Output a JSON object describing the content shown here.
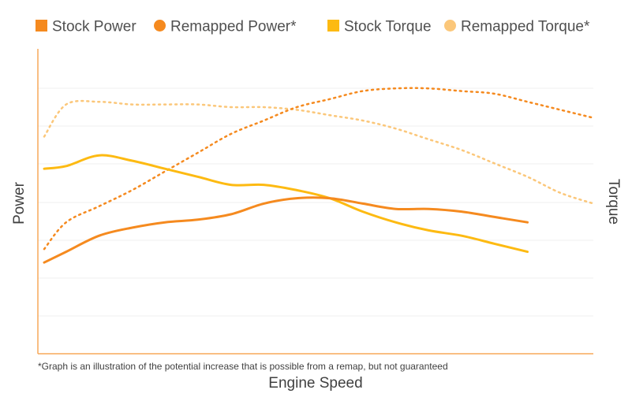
{
  "chart_data": {
    "type": "line",
    "title": "",
    "xlabel": "Engine Speed",
    "ylabel": "Power",
    "y2label": "Torque",
    "footnote": "*Graph is an illustration of the potential increase that is possible from a remap, but not guaranteed",
    "grid": true,
    "legend_position": "top",
    "x": [
      0.0,
      0.04,
      0.1,
      0.16,
      0.22,
      0.28,
      0.34,
      0.4,
      0.46,
      0.52,
      0.58,
      0.64,
      0.7,
      0.76,
      0.82,
      0.88,
      0.94,
      1.0
    ],
    "xlim": [
      0,
      1
    ],
    "ylim": [
      0,
      1
    ],
    "series": [
      {
        "name": "Stock Power",
        "legend_marker": "square",
        "style": "solid",
        "color": "#F58A1F",
        "values": [
          0.27,
          0.31,
          0.37,
          0.4,
          0.42,
          0.43,
          0.45,
          0.49,
          0.51,
          0.51,
          0.49,
          0.47,
          0.47,
          0.46,
          0.44,
          0.42,
          null,
          null
        ]
      },
      {
        "name": "Remapped Power*",
        "legend_marker": "circle",
        "style": "dotted",
        "color": "#F58A1F",
        "values": [
          0.32,
          0.42,
          0.48,
          0.54,
          0.61,
          0.68,
          0.75,
          0.8,
          0.85,
          0.88,
          0.91,
          0.92,
          0.92,
          0.91,
          0.9,
          0.87,
          0.84,
          0.81
        ]
      },
      {
        "name": "Stock Torque",
        "legend_marker": "square",
        "style": "solid",
        "color": "#FDBA12",
        "values": [
          0.62,
          0.63,
          0.67,
          0.65,
          0.62,
          0.59,
          0.56,
          0.56,
          0.54,
          0.51,
          0.46,
          0.42,
          0.39,
          0.37,
          0.34,
          0.31,
          null,
          null
        ]
      },
      {
        "name": "Remapped Torque*",
        "legend_marker": "circle",
        "style": "dotted",
        "color": "#FBC77A",
        "values": [
          0.74,
          0.86,
          0.87,
          0.86,
          0.86,
          0.86,
          0.85,
          0.85,
          0.84,
          0.82,
          0.8,
          0.77,
          0.73,
          0.69,
          0.64,
          0.59,
          0.53,
          0.49
        ]
      }
    ]
  }
}
